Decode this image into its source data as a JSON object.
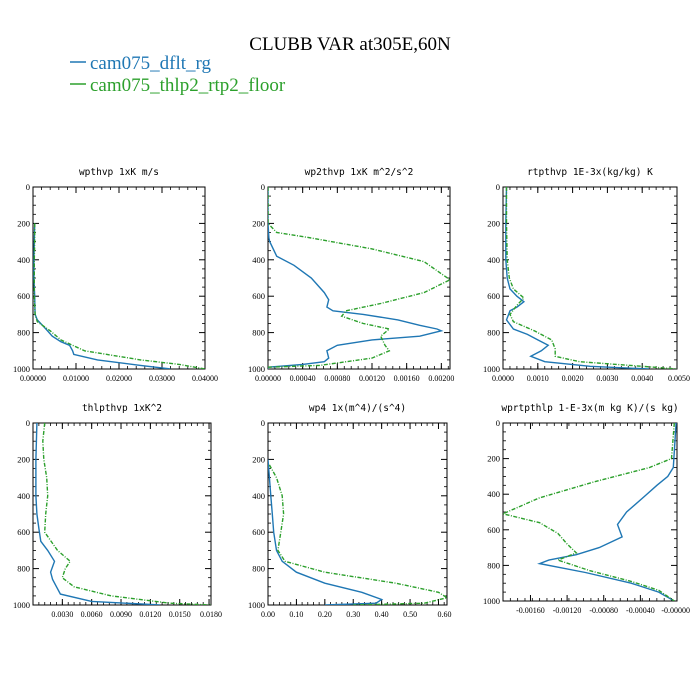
{
  "chart_data": {
    "title": "CLUBB VAR at305E,60N",
    "legend": {
      "placement": "top-left",
      "entries": [
        {
          "name": "cam075_dflt_rg",
          "color": "#1f77b4",
          "style": "solid"
        },
        {
          "name": "cam075_thlp2_rtp2_floor",
          "color": "#2ca02c",
          "style": "dashed"
        }
      ]
    },
    "panels": [
      {
        "type": "line",
        "title": "wpthvp  1xK m/s",
        "xlim": [
          0,
          0.04
        ],
        "ylim": [
          1000,
          0
        ],
        "y_inverted": true,
        "xticks": [
          0,
          0.01,
          0.02,
          0.03,
          0.04
        ],
        "xtick_labels": [
          "0.00000",
          "0.01000",
          "0.02000",
          "0.03000",
          "0.04000"
        ],
        "yticks": [
          0,
          200,
          400,
          600,
          800,
          1000
        ],
        "series": [
          {
            "color": "#1f77b4",
            "style": "solid",
            "x": [
              0.0004,
              0.0003,
              0.0002,
              0.0002,
              0.0004,
              0.0005,
              0.001,
              0.003,
              0.0045,
              0.0065,
              0.0085,
              0.0092,
              0.0095,
              0.015,
              0.025,
              0.032
            ],
            "y": [
              200,
              300,
              400,
              500,
              600,
              700,
              730,
              780,
              820,
              850,
              870,
              900,
              920,
              950,
              980,
              1000
            ]
          },
          {
            "color": "#2ca02c",
            "style": "dashed",
            "x": [
              0.0004,
              0.0004,
              0.0003,
              0.0003,
              0.0003,
              0.0005,
              0.001,
              0.004,
              0.0065,
              0.012,
              0.025,
              0.034,
              0.04
            ],
            "y": [
              200,
              300,
              400,
              500,
              600,
              700,
              740,
              790,
              840,
              900,
              950,
              975,
              1000
            ]
          }
        ]
      },
      {
        "type": "line",
        "title": "wp2thvp  1xK m^2/s^2",
        "xlim": [
          0,
          0.0021
        ],
        "ylim": [
          1000,
          0
        ],
        "y_inverted": true,
        "xticks": [
          0,
          0.0004,
          0.0008,
          0.0012,
          0.0016,
          0.002
        ],
        "xtick_labels": [
          "0.00000",
          "0.00040",
          "0.00080",
          "0.00120",
          "0.00160",
          "0.00200"
        ],
        "yticks": [
          0,
          200,
          400,
          600,
          800,
          1000
        ],
        "series": [
          {
            "color": "#1f77b4",
            "style": "solid",
            "x": [
              0,
              0,
              1e-05,
              2e-05,
              0.0001,
              0.0003,
              0.0005,
              0.00065,
              0.0007,
              0.00068,
              0.00075,
              0.0011,
              0.0015,
              0.00175,
              0.00195,
              0.002,
              0.00175,
              0.0012,
              0.0008,
              0.00068,
              0.0007,
              0.00065,
              0.0004,
              0,
              0
            ],
            "y": [
              0,
              200,
              280,
              300,
              380,
              430,
              500,
              580,
              620,
              660,
              680,
              700,
              730,
              760,
              780,
              790,
              820,
              840,
              870,
              900,
              940,
              960,
              975,
              990,
              1000
            ]
          },
          {
            "color": "#2ca02c",
            "style": "dashed",
            "x": [
              0,
              0,
              0.0001,
              0.0005,
              0.0012,
              0.0018,
              0.0021,
              0.0018,
              0.0013,
              0.0009,
              0.00085,
              0.0011,
              0.0014,
              0.0013,
              0.00135,
              0.0014,
              0.0012,
              0.0006,
              0,
              0
            ],
            "y": [
              0,
              200,
              250,
              280,
              340,
              410,
              510,
              580,
              640,
              680,
              710,
              750,
              780,
              820,
              870,
              900,
              940,
              980,
              990,
              1000
            ]
          }
        ]
      },
      {
        "type": "line",
        "title": "rtpthvp  1E-3x(kg/kg) K",
        "xlim": [
          0,
          0.005
        ],
        "ylim": [
          1000,
          0
        ],
        "y_inverted": true,
        "xticks": [
          0,
          0.001,
          0.002,
          0.003,
          0.004,
          0.005
        ],
        "xtick_labels": [
          "0.0000",
          "0.0010",
          "0.0020",
          "0.0030",
          "0.0040",
          "0.0050"
        ],
        "yticks": [
          0,
          200,
          400,
          600,
          800,
          1000
        ],
        "series": [
          {
            "color": "#1f77b4",
            "style": "solid",
            "x": [
              0.0001,
              8e-05,
              8e-05,
              0.00012,
              0.0002,
              0.0004,
              0.0006,
              0.0004,
              0.0002,
              0.0001,
              0.0003,
              0.0007,
              0.001,
              0.0013,
              0.0011,
              0.0008,
              0.0012,
              0.0025,
              0.0042
            ],
            "y": [
              0,
              200,
              400,
              500,
              560,
              600,
              630,
              660,
              680,
              730,
              780,
              810,
              840,
              870,
              900,
              930,
              960,
              985,
              1000
            ]
          },
          {
            "color": "#2ca02c",
            "style": "dashed",
            "x": [
              0.0001,
              0.0001,
              0.00012,
              0.00018,
              0.0003,
              0.0006,
              0.0004,
              0.0002,
              0.0003,
              0.0009,
              0.0014,
              0.0015,
              0.0015,
              0.0022,
              0.004,
              0.005
            ],
            "y": [
              0,
              200,
              400,
              500,
              560,
              610,
              650,
              700,
              740,
              790,
              840,
              890,
              930,
              960,
              985,
              1000
            ]
          }
        ]
      },
      {
        "type": "line",
        "title": "thlpthvp  1xK^2",
        "xlim": [
          0,
          0.0182
        ],
        "ylim": [
          1000,
          0
        ],
        "y_inverted": true,
        "xticks": [
          0.003,
          0.006,
          0.009,
          0.012,
          0.015,
          0.018
        ],
        "xtick_labels": [
          "0.0030",
          "0.0060",
          "0.0090",
          "0.0120",
          "0.0150",
          "0.0180"
        ],
        "yticks": [
          0,
          200,
          400,
          600,
          800,
          1000
        ],
        "series": [
          {
            "color": "#1f77b4",
            "style": "solid",
            "x": [
              0.0004,
              0.0003,
              0.0003,
              0.0004,
              0.0006,
              0.0008,
              0.0015,
              0.0022,
              0.0018,
              0.002,
              0.0024,
              0.0028,
              0.006,
              0.013
            ],
            "y": [
              0,
              200,
              400,
              500,
              580,
              650,
              700,
              760,
              820,
              860,
              900,
              940,
              980,
              1000
            ]
          },
          {
            "color": "#2ca02c",
            "style": "dashed",
            "x": [
              0.0012,
              0.001,
              0.0011,
              0.0014,
              0.0015,
              0.0013,
              0.0012,
              0.0025,
              0.0038,
              0.0033,
              0.003,
              0.0042,
              0.008,
              0.014,
              0.0182
            ],
            "y": [
              0,
              100,
              200,
              300,
              400,
              500,
              600,
              700,
              760,
              800,
              850,
              900,
              950,
              990,
              1000
            ]
          }
        ]
      },
      {
        "type": "line",
        "title": "wp4  1x(m^4)/(s^4)",
        "xlim": [
          0,
          0.63
        ],
        "ylim": [
          1000,
          0
        ],
        "y_inverted": true,
        "xticks": [
          0,
          0.1,
          0.2,
          0.3,
          0.4,
          0.5,
          0.6
        ],
        "xtick_labels": [
          "0.00",
          "0.10",
          "0.20",
          "0.30",
          "0.40",
          "0.50",
          "0.60"
        ],
        "yticks": [
          0,
          200,
          400,
          600,
          800,
          1000
        ],
        "series": [
          {
            "color": "#1f77b4",
            "style": "solid",
            "x": [
              0,
              0.005,
              0.01,
              0.015,
              0.02,
              0.03,
              0.05,
              0.1,
              0.2,
              0.33,
              0.4,
              0.38,
              0.2
            ],
            "y": [
              200,
              300,
              400,
              500,
              600,
              700,
              760,
              820,
              880,
              930,
              970,
              990,
              1000
            ]
          },
          {
            "color": "#2ca02c",
            "style": "dashed",
            "x": [
              0.005,
              0.03,
              0.05,
              0.055,
              0.045,
              0.035,
              0.06,
              0.2,
              0.45,
              0.6,
              0.63,
              0.55,
              0.3
            ],
            "y": [
              230,
              300,
              400,
              500,
              600,
              700,
              760,
              820,
              880,
              930,
              960,
              990,
              1000
            ]
          }
        ]
      },
      {
        "type": "line",
        "title": "wprtpthlp  1-E-3x(m kg K)/(s kg)",
        "xlim": [
          -0.0019,
          0
        ],
        "ylim": [
          1000,
          0
        ],
        "y_inverted": true,
        "xticks": [
          -0.0016,
          -0.0012,
          -0.0008,
          -0.0004,
          0
        ],
        "xtick_labels": [
          "-0.00160",
          "-0.00120",
          "-0.00080",
          "-0.00040",
          "-0.00000"
        ],
        "yticks": [
          0,
          200,
          400,
          600,
          800,
          1000
        ],
        "series": [
          {
            "color": "#1f77b4",
            "style": "solid",
            "x": [
              -1e-05,
              -4e-05,
              -0.0001,
              -0.00022,
              -0.00035,
              -0.00055,
              -0.00065,
              -0.0006,
              -0.00085,
              -0.0011,
              -0.0014,
              -0.0015,
              -0.001,
              -0.0005,
              -0.0002,
              -3e-05
            ],
            "y": [
              0,
              250,
              300,
              350,
              410,
              500,
              570,
              640,
              700,
              740,
              770,
              790,
              840,
              900,
              950,
              1000
            ]
          },
          {
            "color": "#2ca02c",
            "style": "dashed",
            "x": [
              -3e-05,
              -6e-05,
              -0.0003,
              -0.0009,
              -0.0015,
              -0.0019,
              -0.0015,
              -0.0013,
              -0.0012,
              -0.0011,
              -0.0013,
              -0.00095,
              -0.0005,
              -0.0002,
              -3e-05
            ],
            "y": [
              0,
              200,
              250,
              330,
              420,
              510,
              560,
              620,
              680,
              730,
              770,
              830,
              890,
              940,
              1000
            ]
          }
        ]
      }
    ]
  }
}
